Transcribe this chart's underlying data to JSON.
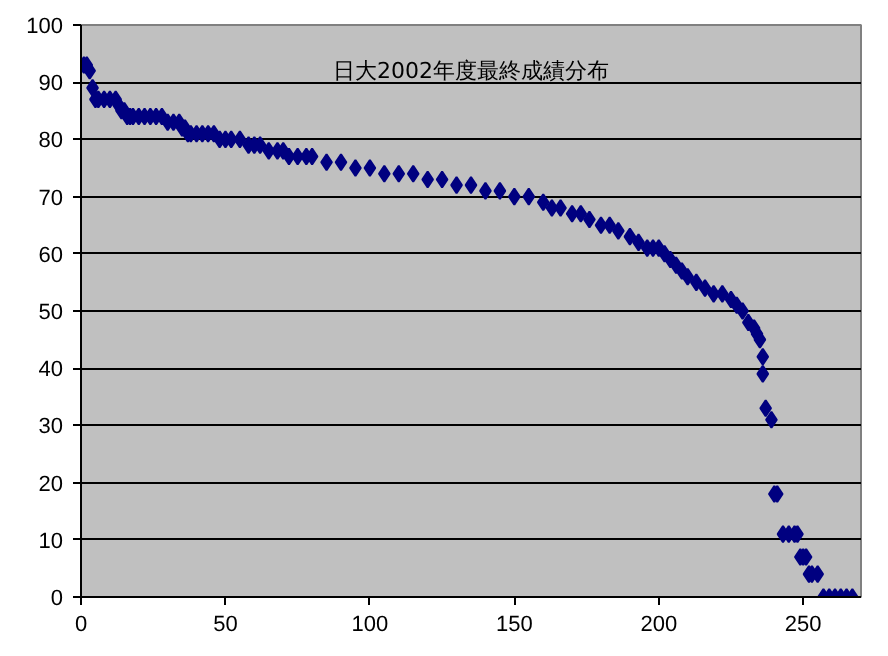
{
  "chart_data": {
    "type": "scatter",
    "title": "日大2002年度最終成績分布",
    "x": [
      1,
      2,
      3,
      4,
      5,
      6,
      8,
      10,
      12,
      13,
      14,
      15,
      16,
      17,
      18,
      20,
      22,
      24,
      26,
      28,
      30,
      32,
      34,
      35,
      36,
      37,
      38,
      40,
      42,
      44,
      46,
      48,
      50,
      52,
      55,
      58,
      60,
      62,
      65,
      68,
      70,
      72,
      75,
      78,
      80,
      85,
      90,
      95,
      100,
      105,
      110,
      115,
      120,
      125,
      130,
      135,
      140,
      145,
      150,
      155,
      160,
      163,
      166,
      170,
      173,
      176,
      180,
      183,
      186,
      190,
      193,
      196,
      198,
      200,
      202,
      204,
      206,
      208,
      210,
      213,
      216,
      219,
      222,
      225,
      227,
      229,
      231,
      233,
      234,
      235,
      236,
      236,
      237,
      239,
      240,
      241,
      243,
      245,
      247,
      248,
      249,
      250,
      251,
      252,
      253,
      255,
      257,
      259,
      261,
      263,
      265,
      267
    ],
    "values": [
      93,
      93,
      92,
      89,
      87,
      87,
      87,
      87,
      87,
      86,
      85,
      85,
      84,
      84,
      84,
      84,
      84,
      84,
      84,
      84,
      83,
      83,
      83,
      82,
      82,
      81,
      81,
      81,
      81,
      81,
      81,
      80,
      80,
      80,
      80,
      79,
      79,
      79,
      78,
      78,
      78,
      77,
      77,
      77,
      77,
      76,
      76,
      75,
      75,
      74,
      74,
      74,
      73,
      73,
      72,
      72,
      71,
      71,
      70,
      70,
      69,
      68,
      68,
      67,
      67,
      66,
      65,
      65,
      64,
      63,
      62,
      61,
      61,
      61,
      60,
      59,
      58,
      57,
      56,
      55,
      54,
      53,
      53,
      52,
      51,
      50,
      48,
      47,
      46,
      45,
      42,
      39,
      33,
      31,
      18,
      18,
      11,
      11,
      11,
      11,
      7,
      7,
      7,
      4,
      4,
      4,
      0,
      0,
      0,
      0,
      0,
      0
    ],
    "color": "#000080",
    "marker": "diamond",
    "xlim": [
      0,
      270
    ],
    "xticks": [
      0,
      50,
      100,
      150,
      200,
      250
    ],
    "ylim": [
      0,
      100
    ],
    "yticks": [
      0,
      10,
      20,
      30,
      40,
      50,
      60,
      70,
      80,
      90,
      100
    ],
    "grid": "y"
  }
}
